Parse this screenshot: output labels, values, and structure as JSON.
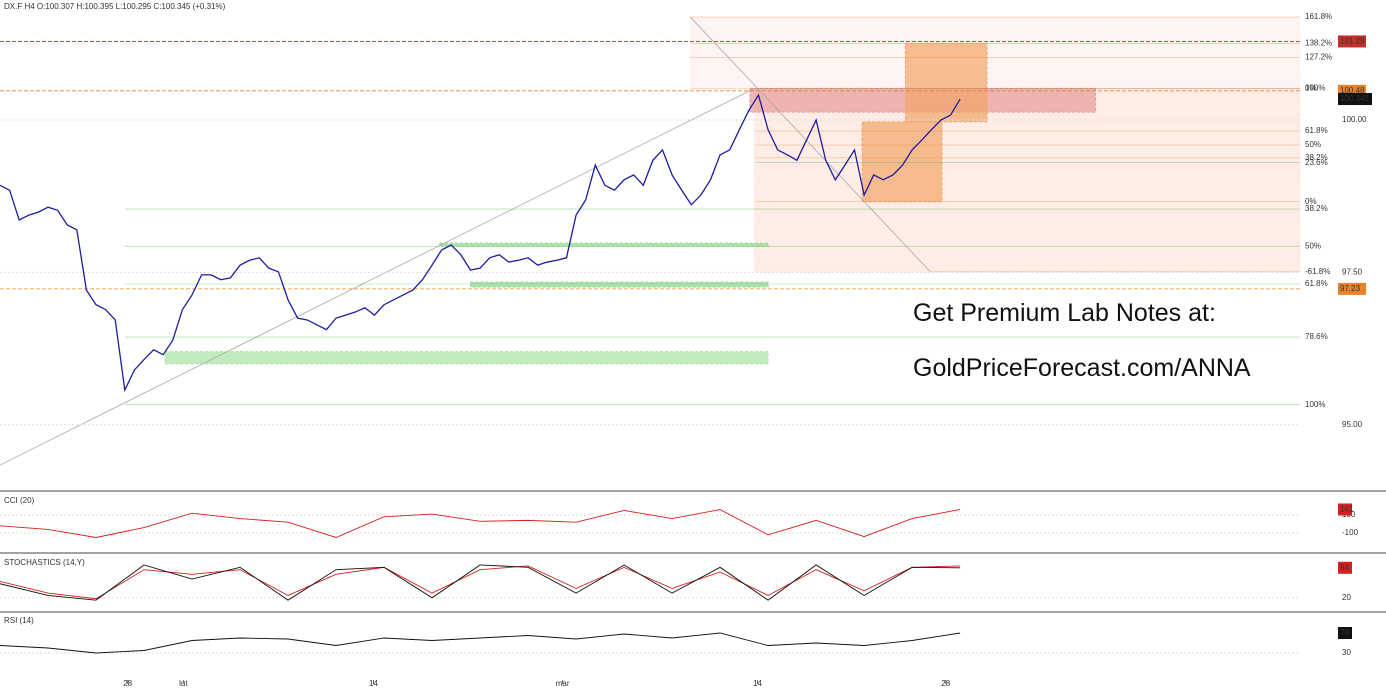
{
  "chart_data": [
    {
      "type": "line",
      "title": "DX.F  H4  O:100.307  H:100.395  L:100.295  C:100.345  (+0.31%)",
      "annotations": [
        "Get Premium Lab Notes at:",
        "GoldPriceForecast.com/ANNA"
      ],
      "xlim": [
        0,
        135.4
      ],
      "ylim": [
        93.93,
        101.97
      ],
      "xticks": [
        {
          "value": 13.3,
          "label": "28"
        },
        {
          "value": 19.1,
          "label": "lut"
        },
        {
          "value": 38.9,
          "label": "14"
        },
        {
          "value": 58.6,
          "label": "mar"
        },
        {
          "value": 78.9,
          "label": "14"
        },
        {
          "value": 98.5,
          "label": "28"
        }
      ],
      "yticks": [
        {
          "value": 100,
          "label": "100.00"
        },
        {
          "value": 97.5,
          "label": "97.50"
        },
        {
          "value": 95,
          "label": "95.00"
        }
      ],
      "series": [
        {
          "color": "#1c1ca0",
          "x": [
            0,
            1,
            2,
            3,
            4,
            5,
            6,
            7,
            8,
            9,
            10,
            11,
            12,
            13,
            14,
            15,
            16,
            17,
            18,
            19,
            20,
            21,
            22,
            23,
            24,
            25,
            26,
            27,
            28,
            29,
            30,
            31,
            32,
            33,
            34,
            35,
            36,
            37,
            38,
            39,
            40,
            41,
            42,
            43,
            44,
            45,
            46,
            47,
            48,
            49,
            50,
            51,
            52,
            53,
            54,
            55,
            56,
            57,
            58,
            59,
            60,
            61,
            62,
            63,
            64,
            65,
            66,
            67,
            68,
            69,
            70,
            71,
            72,
            73,
            74,
            75,
            76,
            77,
            78,
            79,
            80,
            81,
            82,
            83,
            84,
            85,
            86,
            87,
            88,
            89,
            90,
            91,
            92,
            93,
            94,
            95,
            96,
            97,
            98,
            99,
            100
          ],
          "values": [
            98.93,
            98.85,
            98.36,
            98.44,
            98.49,
            98.57,
            98.52,
            98.28,
            98.2,
            97.21,
            96.97,
            96.89,
            96.72,
            95.57,
            95.9,
            96.07,
            96.23,
            96.15,
            96.39,
            96.89,
            97.13,
            97.46,
            97.46,
            97.38,
            97.41,
            97.62,
            97.7,
            97.74,
            97.57,
            97.51,
            97.05,
            96.75,
            96.72,
            96.64,
            96.56,
            96.75,
            96.8,
            96.85,
            96.92,
            96.8,
            96.97,
            97.05,
            97.13,
            97.21,
            97.38,
            97.62,
            97.87,
            97.95,
            97.79,
            97.54,
            97.57,
            97.74,
            97.79,
            97.67,
            97.7,
            97.74,
            97.62,
            97.67,
            97.7,
            97.74,
            98.44,
            98.69,
            99.26,
            98.93,
            98.85,
            99.02,
            99.1,
            98.93,
            99.34,
            99.51,
            99.1,
            98.85,
            98.61,
            98.77,
            99.02,
            99.43,
            99.51,
            99.84,
            100.16,
            100.41,
            99.84,
            99.51,
            99.43,
            99.34,
            99.67,
            100.0,
            99.34,
            99.02,
            99.26,
            99.51,
            98.77,
            99.1,
            99.02,
            99.1,
            99.26,
            99.51,
            99.67,
            99.84,
            100.0,
            100.08,
            100.345
          ]
        }
      ],
      "hlines": [
        {
          "value": 101.29,
          "color": "#c0302a"
        },
        {
          "value": 100.48,
          "color": "#e8822a"
        },
        {
          "value": 97.23,
          "color": "#e8822a"
        }
      ],
      "zones": [
        {
          "x": [
            71.9,
            135.4
          ],
          "y": [
            100.52,
            101.69
          ],
          "color": "#fdf1ec"
        },
        {
          "x": [
            78.6,
            135.4
          ],
          "y": [
            97.51,
            100.52
          ],
          "color": "#fde6dc"
        },
        {
          "x": [
            45.8,
            80
          ],
          "y": [
            97.93,
            97.98
          ],
          "color": "#8fd98f"
        },
        {
          "x": [
            49,
            80
          ],
          "y": [
            97.26,
            97.34
          ],
          "color": "#8fd98f"
        },
        {
          "x": [
            17.2,
            80
          ],
          "y": [
            96.0,
            96.2
          ],
          "color": "#a8e3a8"
        },
        {
          "x": [
            78.1,
            114.1
          ],
          "y": [
            100.13,
            100.52
          ],
          "color": "#e69a9a"
        },
        {
          "x": [
            94.3,
            102.8
          ],
          "y": [
            99.97,
            101.26
          ],
          "color": "#f2a46a"
        },
        {
          "x": [
            89.8,
            98.1
          ],
          "y": [
            98.66,
            99.97
          ],
          "color": "#f2a46a"
        }
      ],
      "lines": [
        {
          "x": [
            0,
            78.6
          ],
          "y": [
            94.34,
            100.52
          ]
        },
        {
          "x": [
            71.9,
            96.9
          ],
          "y": [
            101.69,
            97.51
          ]
        }
      ],
      "fib_levels": [
        {
          "label": "161.8%",
          "value": 101.69,
          "color": "#e8822a",
          "x0": 71.9
        },
        {
          "label": "138.2%",
          "value": 101.26,
          "color": "#e8822a",
          "x0": 71.9
        },
        {
          "label": "127.2%",
          "value": 101.03,
          "color": "#e8822a",
          "x0": 71.9
        },
        {
          "label": "100%",
          "value": 100.52,
          "color": "#e8822a",
          "x0": 71.9
        },
        {
          "label": "0%",
          "value": 100.52,
          "color": "#777777",
          "x0": 78.6
        },
        {
          "label": "61.8%",
          "value": 99.82,
          "color": "#e8822a",
          "x0": 78.6
        },
        {
          "label": "50%",
          "value": 99.59,
          "color": "#e8822a",
          "x0": 78.6
        },
        {
          "label": "38.2%",
          "value": 99.38,
          "color": "#e8822a",
          "x0": 78.6
        },
        {
          "label": "23.6%",
          "value": 99.3,
          "color": "#3aa63a",
          "x0": 78.6
        },
        {
          "label": "0%",
          "value": 98.66,
          "color": "#e8822a",
          "x0": 78.6
        },
        {
          "label": "38.2%",
          "value": 98.54,
          "color": "#3aa63a",
          "x0": 13
        },
        {
          "label": "50%",
          "value": 97.93,
          "color": "#3aa63a",
          "x0": 13
        },
        {
          "label": "-61.8%",
          "value": 97.51,
          "color": "#e8822a",
          "x0": 96.9
        },
        {
          "label": "61.8%",
          "value": 97.31,
          "color": "#3aa63a",
          "x0": 13
        },
        {
          "label": "78.6%",
          "value": 96.44,
          "color": "#3aa63a",
          "x0": 13
        },
        {
          "label": "100%",
          "value": 95.33,
          "color": "#3aa63a",
          "x0": 13
        }
      ]
    },
    {
      "type": "line",
      "title": "CCI (20)",
      "xlim": [
        0,
        135.4
      ],
      "ylim": [
        -289,
        322
      ],
      "yticks": [
        100,
        -100
      ],
      "label_color": "#d42020",
      "series": [
        {
          "color": "#d42020",
          "x": [
            0,
            5,
            10,
            15,
            20,
            25,
            30,
            35,
            40,
            45,
            50,
            55,
            60,
            65,
            70,
            75,
            80,
            85,
            90,
            95,
            100
          ],
          "values": [
            -20,
            -60,
            -150,
            -40,
            120,
            60,
            20,
            -150,
            80,
            110,
            30,
            40,
            20,
            150,
            60,
            160,
            -120,
            40,
            -140,
            60,
            161
          ]
        }
      ]
    },
    {
      "type": "line",
      "title": "STOCHASTICS (14,Y)",
      "xlim": [
        0,
        135.4
      ],
      "ylim": [
        -6,
        107
      ],
      "yticks": [
        20
      ],
      "label_color": "#d42020",
      "series": [
        {
          "color": "#d42020",
          "x": [
            0,
            5,
            10,
            15,
            20,
            25,
            30,
            35,
            40,
            45,
            50,
            55,
            60,
            65,
            70,
            75,
            80,
            85,
            90,
            95,
            100
          ],
          "values": [
            55,
            30,
            18,
            80,
            70,
            80,
            25,
            70,
            85,
            30,
            80,
            88,
            40,
            85,
            40,
            75,
            25,
            80,
            35,
            85,
            88
          ]
        },
        {
          "color": "#111111",
          "x": [
            0,
            5,
            10,
            15,
            20,
            25,
            30,
            35,
            40,
            45,
            50,
            55,
            60,
            65,
            70,
            75,
            80,
            85,
            90,
            95,
            100
          ],
          "values": [
            50,
            25,
            15,
            90,
            60,
            85,
            15,
            80,
            85,
            20,
            90,
            85,
            30,
            90,
            30,
            85,
            15,
            90,
            25,
            85,
            84
          ]
        }
      ]
    },
    {
      "type": "line",
      "title": "RSI (14)",
      "xlim": [
        0,
        135.4
      ],
      "ylim": [
        -24,
        106
      ],
      "yticks": [
        30
      ],
      "label_color": "#111111",
      "series": [
        {
          "color": "#111111",
          "x": [
            0,
            5,
            10,
            15,
            20,
            25,
            30,
            35,
            40,
            45,
            50,
            55,
            60,
            65,
            70,
            75,
            80,
            85,
            90,
            95,
            100
          ],
          "values": [
            45,
            40,
            30,
            35,
            55,
            60,
            58,
            45,
            60,
            55,
            60,
            65,
            58,
            68,
            60,
            70,
            45,
            50,
            45,
            55,
            70
          ]
        }
      ]
    }
  ]
}
